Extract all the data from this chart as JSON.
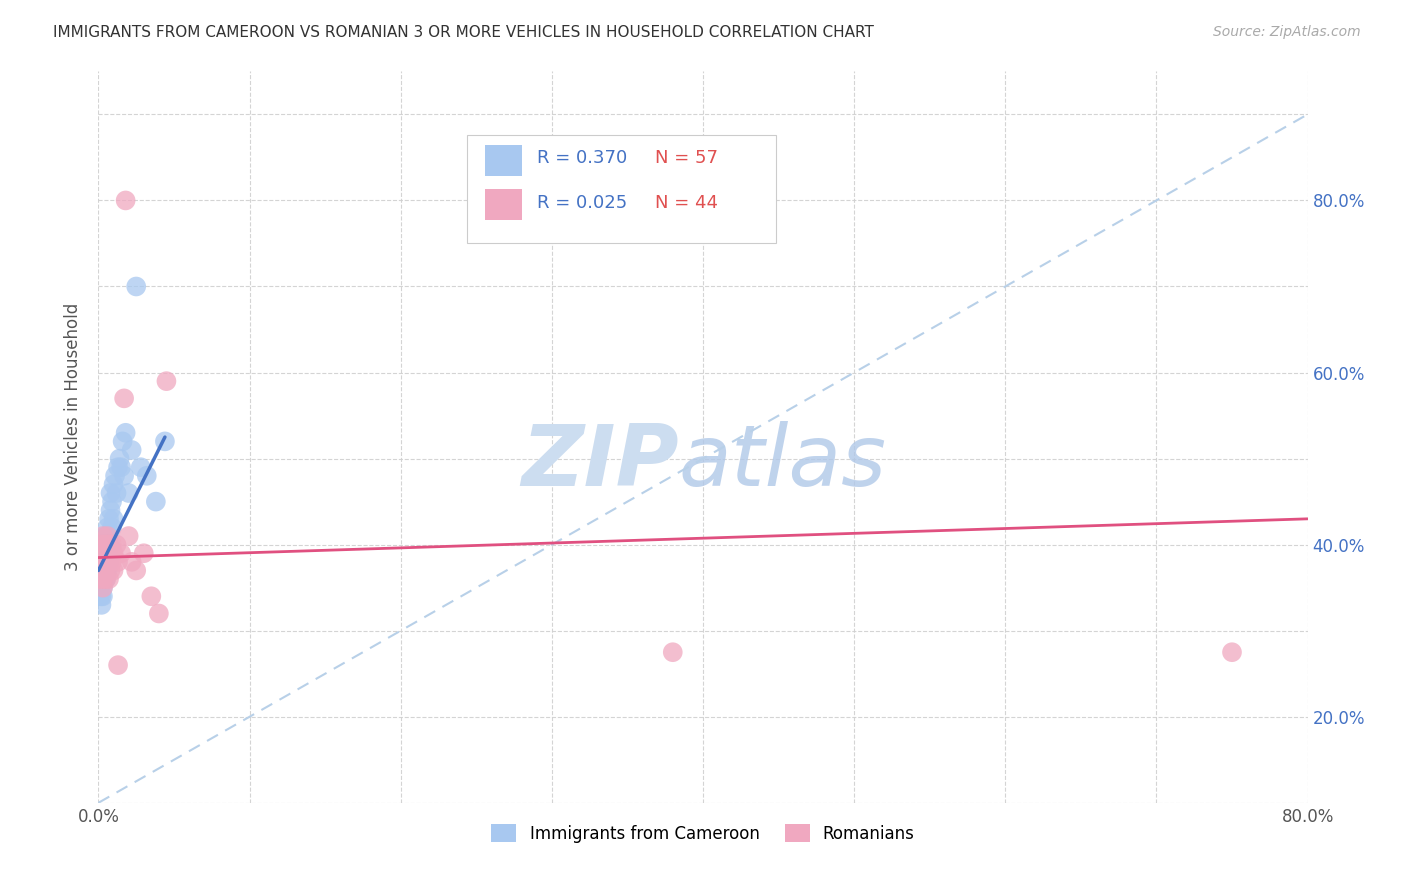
{
  "title": "IMMIGRANTS FROM CAMEROON VS ROMANIAN 3 OR MORE VEHICLES IN HOUSEHOLD CORRELATION CHART",
  "source": "Source: ZipAtlas.com",
  "ylabel": "3 or more Vehicles in Household",
  "xlim": [
    0.0,
    0.8
  ],
  "ylim": [
    0.0,
    0.85
  ],
  "legend_label1": "Immigrants from Cameroon",
  "legend_label2": "Romanians",
  "R1": 0.37,
  "N1": 57,
  "R2": 0.025,
  "N2": 44,
  "color1": "#a8c8f0",
  "color2": "#f0a8c0",
  "line1_color": "#4472c4",
  "line2_color": "#e05080",
  "diag_color": "#b8d0e8",
  "watermark_zip": "ZIP",
  "watermark_atlas": "atlas",
  "title_color": "#333333",
  "source_color": "#aaaaaa",
  "right_tick_color": "#4472c4",
  "legend_R_color": "#4472c4",
  "legend_N_color": "#e05050",
  "cam_x": [
    0.001,
    0.001,
    0.001,
    0.001,
    0.002,
    0.002,
    0.002,
    0.002,
    0.002,
    0.002,
    0.002,
    0.003,
    0.003,
    0.003,
    0.003,
    0.003,
    0.003,
    0.003,
    0.004,
    0.004,
    0.004,
    0.004,
    0.004,
    0.005,
    0.005,
    0.005,
    0.005,
    0.005,
    0.006,
    0.006,
    0.006,
    0.006,
    0.007,
    0.007,
    0.007,
    0.008,
    0.008,
    0.008,
    0.009,
    0.009,
    0.01,
    0.01,
    0.011,
    0.012,
    0.013,
    0.014,
    0.015,
    0.016,
    0.017,
    0.018,
    0.02,
    0.022,
    0.025,
    0.028,
    0.032,
    0.038,
    0.044
  ],
  "cam_y": [
    0.28,
    0.3,
    0.25,
    0.24,
    0.27,
    0.26,
    0.29,
    0.23,
    0.28,
    0.26,
    0.24,
    0.25,
    0.27,
    0.29,
    0.26,
    0.28,
    0.24,
    0.26,
    0.3,
    0.27,
    0.29,
    0.26,
    0.28,
    0.31,
    0.27,
    0.29,
    0.26,
    0.28,
    0.32,
    0.29,
    0.3,
    0.27,
    0.33,
    0.31,
    0.28,
    0.34,
    0.36,
    0.3,
    0.35,
    0.32,
    0.37,
    0.33,
    0.38,
    0.36,
    0.39,
    0.4,
    0.39,
    0.42,
    0.38,
    0.43,
    0.36,
    0.41,
    0.6,
    0.39,
    0.38,
    0.35,
    0.42
  ],
  "rom_x": [
    0.001,
    0.001,
    0.002,
    0.002,
    0.002,
    0.003,
    0.003,
    0.003,
    0.003,
    0.003,
    0.004,
    0.004,
    0.004,
    0.004,
    0.005,
    0.005,
    0.005,
    0.006,
    0.006,
    0.006,
    0.007,
    0.007,
    0.007,
    0.008,
    0.008,
    0.009,
    0.009,
    0.01,
    0.01,
    0.012,
    0.013,
    0.015,
    0.017,
    0.02,
    0.022,
    0.025,
    0.018,
    0.03,
    0.035,
    0.04,
    0.38,
    0.75,
    0.013,
    0.045
  ],
  "rom_y": [
    0.26,
    0.28,
    0.27,
    0.29,
    0.3,
    0.25,
    0.28,
    0.27,
    0.31,
    0.26,
    0.29,
    0.3,
    0.28,
    0.27,
    0.3,
    0.28,
    0.26,
    0.31,
    0.29,
    0.28,
    0.3,
    0.28,
    0.26,
    0.29,
    0.27,
    0.28,
    0.3,
    0.29,
    0.27,
    0.3,
    0.28,
    0.29,
    0.47,
    0.31,
    0.28,
    0.27,
    0.7,
    0.29,
    0.24,
    0.22,
    0.175,
    0.175,
    0.16,
    0.49
  ],
  "blue_line_x": [
    0.0,
    0.044
  ],
  "blue_line_y": [
    0.27,
    0.425
  ],
  "pink_line_x": [
    0.0,
    0.8
  ],
  "pink_line_y": [
    0.285,
    0.33
  ]
}
